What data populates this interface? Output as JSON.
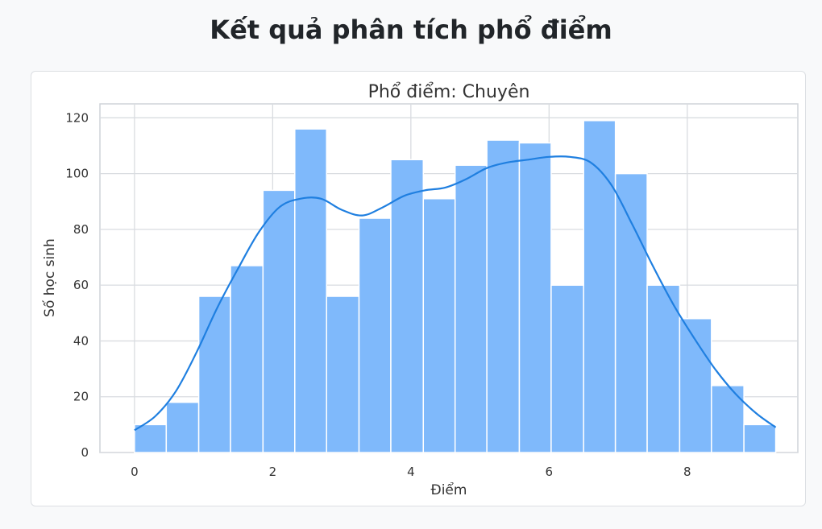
{
  "page": {
    "heading": "Kết quả phân tích phổ điểm"
  },
  "chart_data": {
    "type": "bar",
    "title": "Phổ điểm: Chuyên",
    "xlabel": "Điểm",
    "ylabel": "Số học sinh",
    "xlim": [
      -0.5,
      9.6
    ],
    "ylim": [
      0,
      125
    ],
    "xticks": [
      0,
      2,
      4,
      6,
      8
    ],
    "yticks": [
      0,
      20,
      40,
      60,
      80,
      100,
      120
    ],
    "grid": true,
    "bar_color": "#7fb9fb",
    "line_color": "#1f7fe0",
    "bins": [
      {
        "x0": 0.0,
        "x1": 0.46,
        "count": 10
      },
      {
        "x0": 0.46,
        "x1": 0.93,
        "count": 18
      },
      {
        "x0": 0.93,
        "x1": 1.39,
        "count": 56
      },
      {
        "x0": 1.39,
        "x1": 1.86,
        "count": 67
      },
      {
        "x0": 1.86,
        "x1": 2.32,
        "count": 94
      },
      {
        "x0": 2.32,
        "x1": 2.78,
        "count": 116
      },
      {
        "x0": 2.78,
        "x1": 3.25,
        "count": 56
      },
      {
        "x0": 3.25,
        "x1": 3.71,
        "count": 84
      },
      {
        "x0": 3.71,
        "x1": 4.18,
        "count": 105
      },
      {
        "x0": 4.18,
        "x1": 4.64,
        "count": 91
      },
      {
        "x0": 4.64,
        "x1": 5.1,
        "count": 103
      },
      {
        "x0": 5.1,
        "x1": 5.57,
        "count": 112
      },
      {
        "x0": 5.57,
        "x1": 6.03,
        "count": 111
      },
      {
        "x0": 6.03,
        "x1": 6.5,
        "count": 60
      },
      {
        "x0": 6.5,
        "x1": 6.96,
        "count": 119
      },
      {
        "x0": 6.96,
        "x1": 7.42,
        "count": 100
      },
      {
        "x0": 7.42,
        "x1": 7.89,
        "count": 60
      },
      {
        "x0": 7.89,
        "x1": 8.35,
        "count": 48
      },
      {
        "x0": 8.35,
        "x1": 8.82,
        "count": 24
      },
      {
        "x0": 8.82,
        "x1": 9.28,
        "count": 10
      }
    ],
    "kde": {
      "x": [
        0.0,
        0.3,
        0.6,
        0.9,
        1.2,
        1.5,
        1.8,
        2.1,
        2.4,
        2.7,
        3.0,
        3.3,
        3.6,
        3.9,
        4.2,
        4.5,
        4.8,
        5.1,
        5.4,
        5.7,
        6.0,
        6.3,
        6.6,
        6.9,
        7.2,
        7.5,
        7.8,
        8.1,
        8.4,
        8.7,
        9.0,
        9.28
      ],
      "y": [
        8,
        13,
        22,
        36,
        52,
        66,
        79,
        88,
        91,
        91,
        87,
        85,
        88,
        92,
        94,
        95,
        98,
        102,
        104,
        105,
        106,
        106,
        104,
        96,
        82,
        67,
        53,
        41,
        30,
        21,
        14,
        9
      ]
    }
  }
}
